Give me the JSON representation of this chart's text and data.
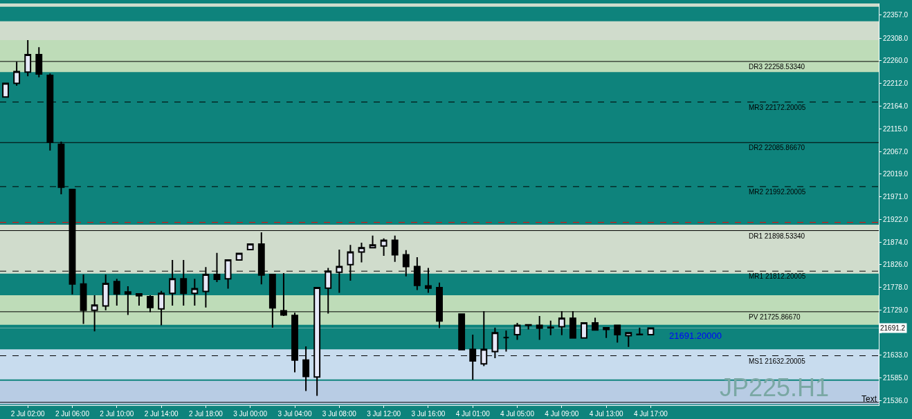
{
  "chart_data": {
    "type": "candlestick",
    "categories": [
      null,
      null,
      "2 Jul 02:00",
      null,
      null,
      null,
      "2 Jul 06:00",
      null,
      null,
      null,
      "2 Jul 10:00",
      null,
      null,
      null,
      "2 Jul 14:00",
      null,
      null,
      null,
      "2 Jul 18:00",
      null,
      null,
      null,
      "3 Jul 00:00",
      null,
      null,
      null,
      "3 Jul 04:00",
      null,
      null,
      null,
      "3 Jul 08:00",
      null,
      null,
      null,
      "3 Jul 12:00",
      null,
      null,
      null,
      "3 Jul 16:00",
      null,
      null,
      null,
      "4 Jul 01:00",
      null,
      null,
      null,
      "4 Jul 05:00",
      null,
      null,
      null,
      "4 Jul 09:00",
      null,
      null,
      null,
      "4 Jul 13:00",
      null,
      null,
      null,
      "4 Jul 17:00",
      null,
      null,
      null,
      null,
      null,
      null,
      null,
      null,
      null,
      null,
      null,
      null,
      null,
      null,
      null,
      null,
      null,
      null,
      null,
      null
    ],
    "ohlc": [
      [
        22183,
        22213,
        22183,
        22212
      ],
      [
        22212,
        22258,
        22207,
        22237
      ],
      [
        22236,
        22304,
        22227,
        22273
      ],
      [
        22273,
        22289,
        22225,
        22232
      ],
      [
        22229,
        22233,
        22069,
        22087
      ],
      [
        22082,
        22088,
        21976,
        21991
      ],
      [
        21986,
        21986,
        21763,
        21785
      ],
      [
        21785,
        21805,
        21700,
        21729
      ],
      [
        21729,
        21761,
        21684,
        21740
      ],
      [
        21738,
        21805,
        21729,
        21786
      ],
      [
        21790,
        21796,
        21739,
        21764
      ],
      [
        21768,
        21780,
        21719,
        21764
      ],
      [
        21764,
        21765,
        21739,
        21760
      ],
      [
        21758,
        21761,
        21725,
        21735
      ],
      [
        21732,
        21770,
        21697,
        21765
      ],
      [
        21765,
        21836,
        21739,
        21796
      ],
      [
        21796,
        21836,
        21739,
        21765
      ],
      [
        21765,
        21796,
        21739,
        21775
      ],
      [
        21769,
        21821,
        21735,
        21805
      ],
      [
        21805,
        21851,
        21789,
        21795
      ],
      [
        21796,
        21836,
        21775,
        21836
      ],
      [
        21836,
        21850,
        21836,
        21850
      ],
      [
        21858,
        21870,
        21858,
        21870
      ],
      [
        21870,
        21895,
        21784,
        21804
      ],
      [
        21805,
        21805,
        21692,
        21734
      ],
      [
        21728,
        21808,
        21717,
        21719
      ],
      [
        21718,
        21724,
        21597,
        21623
      ],
      [
        21623,
        21652,
        21557,
        21588
      ],
      [
        21587,
        21777,
        21547,
        21777
      ],
      [
        21776,
        21819,
        21722,
        21812
      ],
      [
        21810,
        21858,
        21766,
        21822
      ],
      [
        21826,
        21868,
        21792,
        21853
      ],
      [
        21853,
        21873,
        21831,
        21862
      ],
      [
        21862,
        21888,
        21862,
        21868
      ],
      [
        21866,
        21882,
        21845,
        21878
      ],
      [
        21878,
        21888,
        21832,
        21847
      ],
      [
        21847,
        21857,
        21801,
        21822
      ],
      [
        21822,
        21842,
        21772,
        21782
      ],
      [
        21781,
        21819,
        21766,
        21776
      ],
      [
        21777,
        21788,
        21691,
        21706
      ],
      null,
      [
        21721,
        21721,
        21645,
        21645
      ],
      [
        21646,
        21677,
        21581,
        21621
      ],
      [
        21615,
        21727,
        21610,
        21646
      ],
      [
        21641,
        21692,
        21627,
        21681
      ],
      [
        21671,
        21686,
        21641,
        21671
      ],
      [
        21677,
        21702,
        21666,
        21697
      ],
      [
        21697,
        21699,
        21688,
        21698
      ],
      [
        21697,
        21717,
        21666,
        21691
      ],
      [
        21692,
        21707,
        21676,
        21693
      ],
      [
        21694,
        21727,
        21676,
        21712
      ],
      [
        21712,
        21727,
        21670,
        21670
      ],
      [
        21670,
        21702,
        21670,
        21702
      ],
      [
        21702,
        21713,
        21687,
        21687
      ],
      [
        21688,
        21692,
        21670,
        21692
      ],
      [
        21697,
        21697,
        21660,
        21677
      ],
      [
        21675,
        21681,
        21651,
        21681
      ],
      [
        21677,
        21692,
        21677,
        21678
      ],
      [
        21677,
        21691.2,
        21677,
        21691.2
      ],
      null,
      null,
      null,
      null,
      null,
      null,
      null,
      null,
      null,
      null,
      null,
      null,
      null,
      null,
      null,
      null,
      null,
      null,
      null,
      null
    ],
    "ylim": [
      21527,
      22382
    ],
    "yticks": [
      {
        "value": 22357,
        "label": "22357.0"
      },
      {
        "value": 22308,
        "label": "22308.0"
      },
      {
        "value": 22260,
        "label": "22260.0"
      },
      {
        "value": 22212,
        "label": "22212.0"
      },
      {
        "value": 22164,
        "label": "22164.0"
      },
      {
        "value": 22115,
        "label": "22115.0"
      },
      {
        "value": 22067,
        "label": "22067.0"
      },
      {
        "value": 22019,
        "label": "22019.0"
      },
      {
        "value": 21971,
        "label": "21971.0"
      },
      {
        "value": 21922,
        "label": "21922.0"
      },
      {
        "value": 21874,
        "label": "21874.0"
      },
      {
        "value": 21826,
        "label": "21826.0"
      },
      {
        "value": 21778,
        "label": "21778.0"
      },
      {
        "value": 21729,
        "label": "21729.0"
      },
      {
        "value": 21681,
        "label": null
      },
      {
        "value": 21633,
        "label": "21633.0"
      },
      {
        "value": 21585,
        "label": "21585.0"
      },
      {
        "value": 21536,
        "label": "21536.0"
      }
    ],
    "ref_lines": [
      {
        "axis": "y",
        "value": 22258.5334,
        "label": "DR3 22258.53340",
        "color": "#000000",
        "line_style": "solid"
      },
      {
        "axis": "y",
        "value": 22172.20005,
        "label": "MR3 22172.20005",
        "color": "#000000",
        "line_style": "dashed"
      },
      {
        "axis": "y",
        "value": 22085.8667,
        "label": "DR2 22085.86670",
        "color": "#000000",
        "line_style": "solid"
      },
      {
        "axis": "y",
        "value": 21992.20005,
        "label": "MR2 21992.20005",
        "color": "#000000",
        "line_style": "dashed"
      },
      {
        "axis": "y",
        "value": 21916,
        "color": "#ff0000",
        "line_style": "dashed"
      },
      {
        "axis": "y",
        "value": 21898.5334,
        "label": "DR1 21898.53340",
        "color": "#000000",
        "line_style": "solid"
      },
      {
        "axis": "y",
        "value": 21812.20005,
        "label": "MR1 21812.20005",
        "color": "#000000",
        "line_style": "dashed"
      },
      {
        "axis": "y",
        "value": 21725.8667,
        "label": "PV 21725.86670",
        "color": "#000000",
        "line_style": "solid"
      },
      {
        "axis": "y",
        "value": 21691.2,
        "color": "#6fb0aa",
        "line_style": "solid"
      },
      {
        "axis": "y",
        "value": 21632.20005,
        "label": "MS1 21632.20005",
        "color": "#000000",
        "line_style": "dashed"
      },
      {
        "axis": "y",
        "value": 21533,
        "color": "#000000",
        "line_style": "solid"
      }
    ],
    "bands": [
      {
        "axis": "y",
        "from": 22375,
        "to": 22382,
        "color": "#d0dccc"
      },
      {
        "axis": "y",
        "from": 22304,
        "to": 22344,
        "color": "#d0dccc"
      },
      {
        "axis": "y",
        "from": 22236,
        "to": 22304,
        "color": "#bedcb8"
      },
      {
        "axis": "y",
        "from": 21807,
        "to": 21911,
        "color": "#d0dccc"
      },
      {
        "axis": "y",
        "from": 21698,
        "to": 21761,
        "color": "#bedcb8"
      },
      {
        "axis": "y",
        "from": 21582,
        "to": 21646,
        "color": "#c8dcee"
      },
      {
        "axis": "y",
        "from": 21529,
        "to": 21579,
        "color": "#b8cce4"
      }
    ],
    "annotations": [
      {
        "text": "21691.20000",
        "y": 21691.2
      },
      {
        "text": "21691.2",
        "y": 21691.2
      },
      "JP225.H1",
      "Text"
    ]
  }
}
